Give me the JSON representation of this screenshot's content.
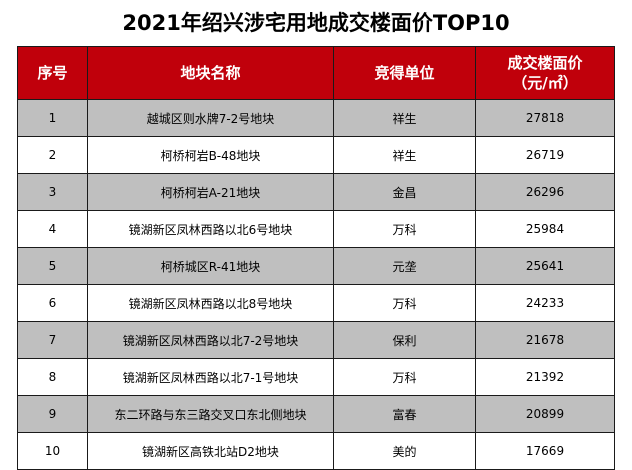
{
  "title": "2021年绍兴涉宅用地成交楼面价TOP10",
  "colors": {
    "header_bg": "#c0000b",
    "header_text": "#ffffff",
    "stripe": "#bfbfbf",
    "border": "#1a1a1a"
  },
  "table": {
    "headers": {
      "no": "序号",
      "plot": "地块名称",
      "winner": "竞得单位",
      "price_line1": "成交楼面价",
      "price_line2": "（元/㎡）"
    },
    "rows": [
      {
        "no": "1",
        "plot": "越城区则水牌7-2号地块",
        "winner": "祥生",
        "price": "27818"
      },
      {
        "no": "2",
        "plot": "柯桥柯岩B-48地块",
        "winner": "祥生",
        "price": "26719"
      },
      {
        "no": "3",
        "plot": "柯桥柯岩A-21地块",
        "winner": "金昌",
        "price": "26296"
      },
      {
        "no": "4",
        "plot": "镜湖新区凤林西路以北6号地块",
        "winner": "万科",
        "price": "25984"
      },
      {
        "no": "5",
        "plot": "柯桥城区R-41地块",
        "winner": "元垄",
        "price": "25641"
      },
      {
        "no": "6",
        "plot": "镜湖新区凤林西路以北8号地块",
        "winner": "万科",
        "price": "24233"
      },
      {
        "no": "7",
        "plot": "镜湖新区凤林西路以北7-2号地块",
        "winner": "保利",
        "price": "21678"
      },
      {
        "no": "8",
        "plot": "镜湖新区凤林西路以北7-1号地块",
        "winner": "万科",
        "price": "21392"
      },
      {
        "no": "9",
        "plot": "东二环路与东三路交叉口东北侧地块",
        "winner": "富春",
        "price": "20899"
      },
      {
        "no": "10",
        "plot": "镜湖新区高铁北站D2地块",
        "winner": "美的",
        "price": "17669"
      }
    ]
  }
}
